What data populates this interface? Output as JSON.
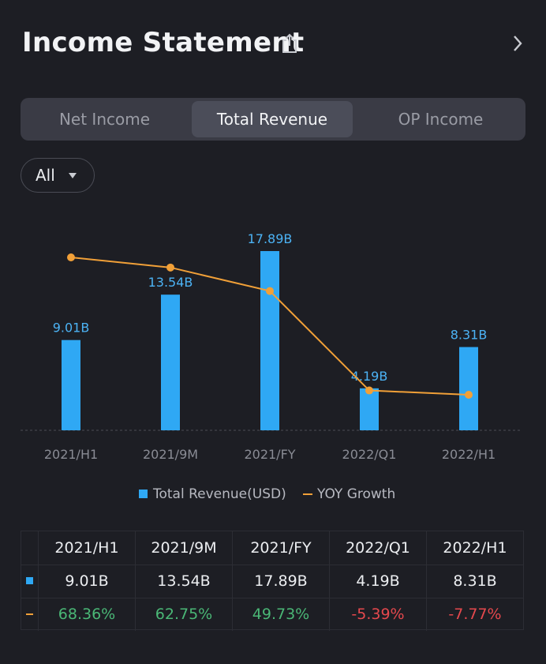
{
  "header": {
    "title": "Income Statement"
  },
  "tabs": [
    {
      "label": "Net Income",
      "active": false
    },
    {
      "label": "Total Revenue",
      "active": true
    },
    {
      "label": "OP Income",
      "active": false
    }
  ],
  "filter": {
    "label": "All"
  },
  "colors": {
    "bar": "#2fa8f4",
    "line": "#f1a038",
    "bar_label": "#4cb3f5",
    "axis_label": "#8a8c95",
    "positive": "#4ab776",
    "negative": "#e5484d"
  },
  "chart_data": {
    "type": "bar",
    "title": "",
    "categories": [
      "2021/H1",
      "2021/9M",
      "2021/FY",
      "2022/Q1",
      "2022/H1"
    ],
    "series": [
      {
        "name": "Total Revenue(USD)",
        "kind": "bar",
        "values": [
          9.01,
          13.54,
          17.89,
          4.19,
          8.31
        ],
        "labels": [
          "9.01B",
          "13.54B",
          "17.89B",
          "4.19B",
          "8.31B"
        ]
      },
      {
        "name": "YOY Growth",
        "kind": "line",
        "values": [
          68.36,
          62.75,
          49.73,
          -5.39,
          -7.77
        ],
        "labels": [
          "68.36%",
          "62.75%",
          "49.73%",
          "-5.39%",
          "-7.77%"
        ]
      }
    ],
    "bar_ylim": [
      0,
      17.89
    ],
    "line_ylim": [
      -7.77,
      68.36
    ],
    "legend_position": "bottom"
  },
  "legend": {
    "bar_label": "Total Revenue(USD)",
    "line_label": "YOY Growth"
  },
  "table": {
    "columns": [
      "2021/H1",
      "2021/9M",
      "2021/FY",
      "2022/Q1",
      "2022/H1"
    ],
    "revenue": [
      "9.01B",
      "13.54B",
      "17.89B",
      "4.19B",
      "8.31B"
    ],
    "growth": [
      "68.36%",
      "62.75%",
      "49.73%",
      "-5.39%",
      "-7.77%"
    ]
  }
}
